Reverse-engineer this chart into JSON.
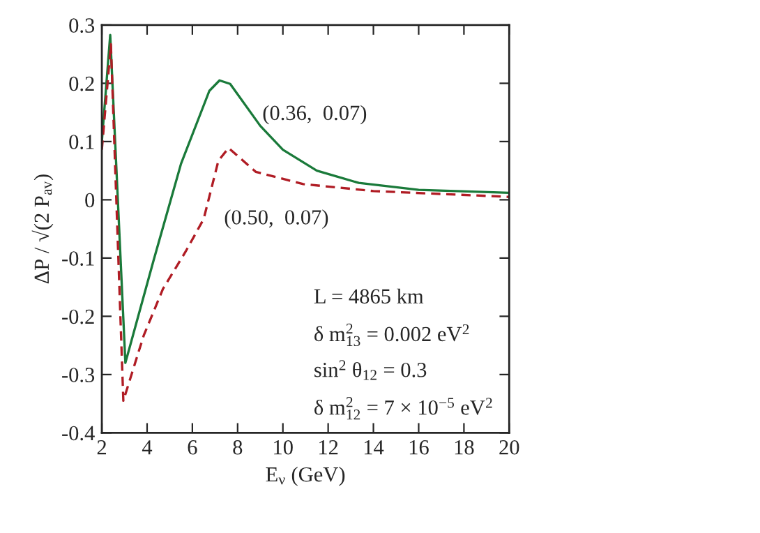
{
  "chart_data": {
    "type": "line",
    "xlabel": "E$_{ν}$ (GeV)",
    "ylabel": "ΔP / √(2 P$_{av}$)",
    "xlim": [
      2,
      20
    ],
    "xticks": [
      2,
      4,
      6,
      8,
      10,
      12,
      14,
      16,
      18,
      20
    ],
    "ylim": [
      -0.4,
      0.3
    ],
    "yticks": [
      -0.4,
      -0.3,
      -0.2,
      -0.1,
      0,
      0.1,
      0.2,
      0.3
    ],
    "grid": false,
    "legend": false,
    "marker": "none",
    "series": [
      {
        "color": "#1a7a3a",
        "line_style": "solid",
        "x": [
          2,
          2.37,
          3.04,
          4.28,
          5.5,
          6.75,
          7.2,
          7.67,
          9.0,
          10.0,
          11.5,
          13.35,
          16,
          20
        ],
        "values": [
          0.1,
          0.283,
          -0.28,
          -0.105,
          0.062,
          0.187,
          0.205,
          0.199,
          0.127,
          0.086,
          0.05,
          0.029,
          0.017,
          0.012
        ]
      },
      {
        "color": "#b01c24",
        "line_style": "dashed",
        "x": [
          2,
          2.4,
          2.95,
          3.85,
          4.7,
          5.7,
          6.5,
          7.15,
          7.6,
          8.8,
          10.9,
          14,
          20
        ],
        "values": [
          0.086,
          0.267,
          -0.345,
          -0.233,
          -0.153,
          -0.089,
          -0.033,
          0.067,
          0.089,
          0.048,
          0.027,
          0.015,
          0.005
        ]
      }
    ],
    "annotations": [
      "(0.36,  0.07)",
      "(0.50,  0.07)",
      "L = 4865 km",
      "δ m$^{2}$$_{13}$ = 0.002 eV$^{2}$",
      "sin$^{2}$ θ$_{12}$ = 0.3",
      "δ m$^{2}$$_{12}$ = 7 × 10$^{−5}$ eV$^{2}$"
    ]
  }
}
